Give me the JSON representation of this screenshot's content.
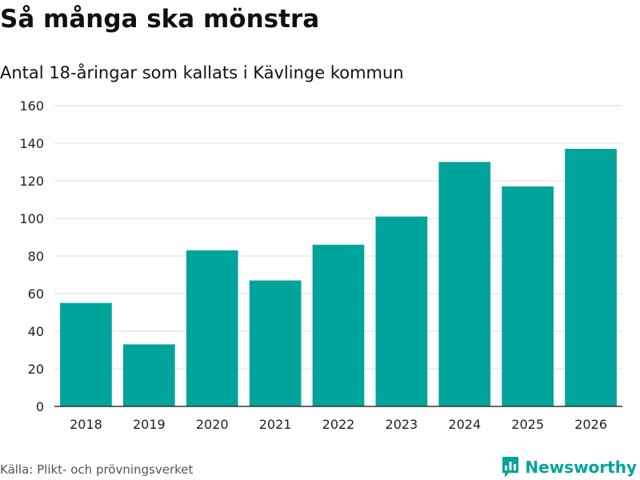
{
  "title": "Så många ska mönstra",
  "subtitle": "Antal 18-åringar som kallats i Kävlinge kommun",
  "source": "Källa: Plikt- och prövningsverket",
  "brand": {
    "name": "Newsworthy",
    "icon": "newsworthy-logo-icon"
  },
  "colors": {
    "bar": "#00a49a",
    "grid": "#dddddd",
    "axis": "#333333",
    "brand": "#00a49a"
  },
  "chart_data": {
    "type": "bar",
    "title": "Så många ska mönstra",
    "subtitle": "Antal 18-åringar som kallats i Kävlinge kommun",
    "categories": [
      "2018",
      "2019",
      "2020",
      "2021",
      "2022",
      "2023",
      "2024",
      "2025",
      "2026"
    ],
    "values": [
      55,
      33,
      83,
      67,
      86,
      101,
      130,
      117,
      137
    ],
    "xlabel": "",
    "ylabel": "",
    "ylim": [
      0,
      160
    ],
    "yticks": [
      0,
      20,
      40,
      60,
      80,
      100,
      120,
      140,
      160
    ],
    "grid": true,
    "legend": "none"
  }
}
